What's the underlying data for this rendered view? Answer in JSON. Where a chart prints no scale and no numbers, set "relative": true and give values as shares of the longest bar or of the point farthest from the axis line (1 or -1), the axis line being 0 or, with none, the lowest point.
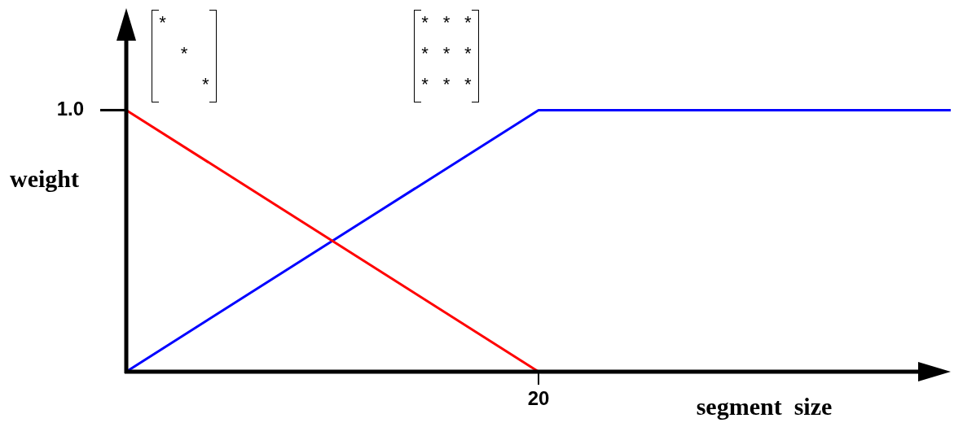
{
  "chart_data": {
    "type": "line",
    "xlabel": "segment  size",
    "ylabel": "weight",
    "relative": true,
    "categories": [
      null,
      null,
      null
    ],
    "series": [
      {
        "color": "#ff0000",
        "values": [
          1,
          0,
          null
        ]
      },
      {
        "color": "#0000ff",
        "values": [
          0,
          1,
          1
        ]
      }
    ],
    "annotations": [
      "1.0",
      "20",
      "*    \n  *  \n    *",
      "* * *\n* * *\n* * *"
    ],
    "legend": false,
    "marker": "none",
    "line_style": "solid"
  }
}
